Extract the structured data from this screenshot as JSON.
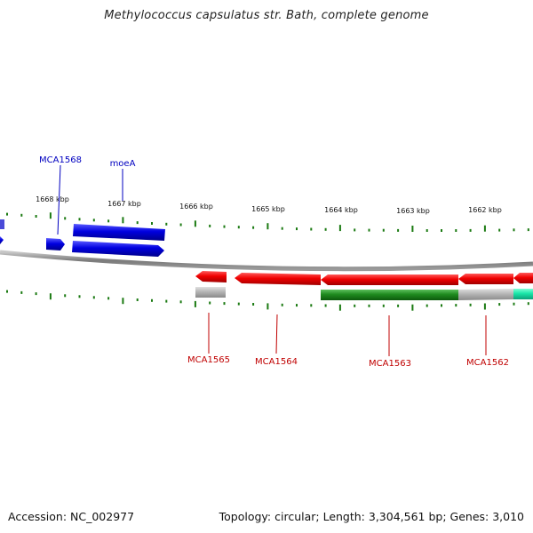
{
  "title": "Methylococcus capsulatus str. Bath, complete genome",
  "footer": {
    "accession": "Accession: NC_002977",
    "summary": "Topology: circular; Length: 3,304,561 bp; Genes: 3,010"
  },
  "colors": {
    "forward_cds": "#0000e0",
    "reverse_cds": "#f00000",
    "rna_gene": "#1f8a1f",
    "pseudo_gene": "#b5b5b5",
    "other_feature": "#19e6a8",
    "backbone": "#8a8a8a",
    "ticks": "#1b7a12",
    "forward_label": "#0000c0",
    "reverse_label": "#c00000"
  },
  "ticks": {
    "labels": [
      "1668 kbp",
      "1667 kbp",
      "1666 kbp",
      "1665 kbp",
      "1664 kbp",
      "1663 kbp",
      "1662 kbp"
    ]
  },
  "gene_labels": [
    {
      "id": "MCA1568",
      "text": "MCA1568",
      "strand": "forward"
    },
    {
      "id": "moeA",
      "text": "moeA",
      "strand": "forward"
    },
    {
      "id": "MCA1565",
      "text": "MCA1565",
      "strand": "reverse"
    },
    {
      "id": "MCA1564",
      "text": "MCA1564",
      "strand": "reverse"
    },
    {
      "id": "MCA1563",
      "text": "MCA1563",
      "strand": "reverse"
    },
    {
      "id": "MCA1562",
      "text": "MCA1562",
      "strand": "reverse"
    }
  ]
}
